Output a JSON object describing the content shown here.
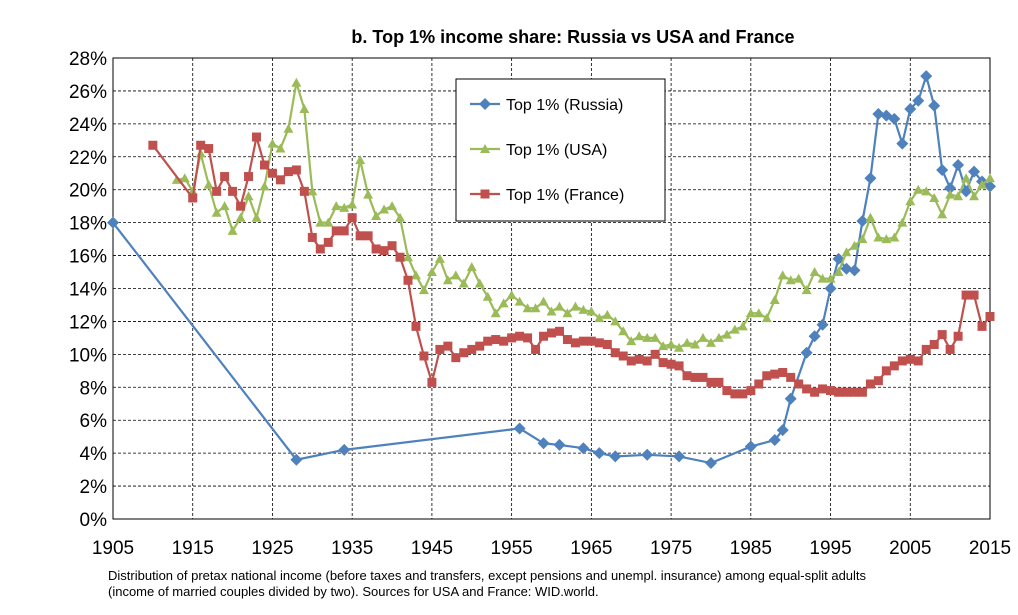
{
  "chart_data": {
    "type": "line",
    "title": "b. Top 1% income share: Russia vs USA and France",
    "note": [
      "Distribution of pretax national income (before taxes and transfers, except pensions and unempl. insurance) among equal-split adults",
      "(income of married couples divided by two). Sources for USA and France: WID.world."
    ],
    "xlim": [
      1905,
      2015
    ],
    "xticks": [
      1905,
      1915,
      1925,
      1935,
      1945,
      1955,
      1965,
      1975,
      1985,
      1995,
      2005,
      2015
    ],
    "ylim": [
      0,
      28
    ],
    "yticks": [
      {
        "value": 0,
        "label": "0%"
      },
      {
        "value": 2,
        "label": "2%"
      },
      {
        "value": 4,
        "label": "4%"
      },
      {
        "value": 6,
        "label": "6%"
      },
      {
        "value": 8,
        "label": "8%"
      },
      {
        "value": 10,
        "label": "10%"
      },
      {
        "value": 12,
        "label": "12%"
      },
      {
        "value": 14,
        "label": "14%"
      },
      {
        "value": 16,
        "label": "16%"
      },
      {
        "value": 18,
        "label": "18%"
      },
      {
        "value": 20,
        "label": "20%"
      },
      {
        "value": 22,
        "label": "22%"
      },
      {
        "value": 24,
        "label": "24%"
      },
      {
        "value": 26,
        "label": "26%"
      },
      {
        "value": 28,
        "label": "28%"
      }
    ],
    "grid": true,
    "series": [
      {
        "name": "Top 1% (Russia)",
        "color": "#4f81bd",
        "marker": "diamond",
        "x": [
          1905,
          1928,
          1934,
          1956,
          1959,
          1961,
          1964,
          1966,
          1968,
          1972,
          1976,
          1980,
          1985,
          1988,
          1989,
          1990,
          1992,
          1993,
          1994,
          1995,
          1996,
          1997,
          1998,
          1999,
          2000,
          2001,
          2002,
          2003,
          2004,
          2005,
          2006,
          2007,
          2008,
          2009,
          2010,
          2011,
          2012,
          2013,
          2014,
          2015
        ],
        "values": [
          18,
          3.6,
          4.2,
          5.5,
          4.6,
          4.5,
          4.3,
          4.0,
          3.8,
          3.9,
          3.8,
          3.4,
          4.4,
          4.8,
          5.4,
          7.3,
          10.1,
          11.1,
          11.8,
          14.0,
          15.8,
          15.2,
          15.1,
          18.1,
          20.7,
          24.6,
          24.5,
          24.3,
          22.8,
          24.9,
          25.4,
          26.9,
          25.1,
          21.2,
          20.1,
          21.5,
          19.9,
          21.1,
          20.5,
          20.2
        ]
      },
      {
        "name": "Top 1% (USA)",
        "color": "#9bbb59",
        "marker": "triangle",
        "x": [
          1913,
          1914,
          1915,
          1916,
          1917,
          1918,
          1919,
          1920,
          1921,
          1922,
          1923,
          1924,
          1925,
          1926,
          1927,
          1928,
          1929,
          1930,
          1931,
          1932,
          1933,
          1934,
          1935,
          1936,
          1937,
          1938,
          1939,
          1940,
          1941,
          1942,
          1943,
          1944,
          1945,
          1946,
          1947,
          1948,
          1949,
          1950,
          1951,
          1952,
          1953,
          1954,
          1955,
          1956,
          1957,
          1958,
          1959,
          1960,
          1961,
          1962,
          1963,
          1964,
          1965,
          1966,
          1967,
          1968,
          1969,
          1970,
          1971,
          1972,
          1973,
          1974,
          1975,
          1976,
          1977,
          1978,
          1979,
          1980,
          1981,
          1982,
          1983,
          1984,
          1985,
          1986,
          1987,
          1988,
          1989,
          1990,
          1991,
          1992,
          1993,
          1994,
          1995,
          1996,
          1997,
          1998,
          1999,
          2000,
          2001,
          2002,
          2003,
          2004,
          2005,
          2006,
          2007,
          2008,
          2009,
          2010,
          2011,
          2012,
          2013,
          2014,
          2015
        ],
        "values": [
          20.6,
          20.7,
          19.9,
          22.2,
          20.3,
          18.6,
          19.0,
          17.5,
          18.3,
          19.6,
          18.3,
          20.2,
          22.8,
          22.5,
          23.7,
          26.5,
          24.9,
          19.9,
          18.0,
          18.0,
          19.0,
          18.9,
          19.1,
          21.8,
          19.7,
          18.4,
          18.8,
          19.0,
          18.3,
          15.9,
          14.8,
          13.9,
          15.0,
          15.8,
          14.5,
          14.8,
          14.3,
          15.3,
          14.3,
          13.5,
          12.5,
          13.1,
          13.6,
          13.2,
          12.8,
          12.8,
          13.2,
          12.6,
          12.9,
          12.5,
          12.9,
          12.7,
          12.6,
          12.2,
          12.4,
          12.0,
          11.4,
          10.8,
          11.1,
          11.0,
          11.0,
          10.5,
          10.6,
          10.4,
          10.7,
          10.6,
          11.0,
          10.7,
          11.0,
          11.2,
          11.5,
          11.7,
          12.5,
          12.5,
          12.2,
          13.3,
          14.8,
          14.5,
          14.6,
          13.9,
          15.0,
          14.6,
          14.6,
          15.0,
          16.2,
          16.6,
          17.0,
          18.3,
          17.1,
          17.0,
          17.1,
          18.0,
          19.3,
          20.0,
          19.9,
          19.5,
          18.5,
          19.7,
          19.6,
          20.7,
          19.6,
          20.3,
          20.7
        ]
      },
      {
        "name": "Top 1% (France)",
        "color": "#c0504d",
        "marker": "square",
        "x": [
          1910,
          1915,
          1916,
          1917,
          1918,
          1919,
          1920,
          1921,
          1922,
          1923,
          1924,
          1925,
          1926,
          1927,
          1928,
          1929,
          1930,
          1931,
          1932,
          1933,
          1934,
          1935,
          1936,
          1937,
          1938,
          1939,
          1940,
          1941,
          1942,
          1943,
          1944,
          1945,
          1946,
          1947,
          1948,
          1949,
          1950,
          1951,
          1952,
          1953,
          1954,
          1955,
          1956,
          1957,
          1958,
          1959,
          1960,
          1961,
          1962,
          1963,
          1964,
          1965,
          1966,
          1967,
          1968,
          1969,
          1970,
          1971,
          1972,
          1973,
          1974,
          1975,
          1976,
          1977,
          1978,
          1979,
          1980,
          1981,
          1982,
          1983,
          1984,
          1985,
          1986,
          1987,
          1988,
          1989,
          1990,
          1991,
          1992,
          1993,
          1994,
          1995,
          1996,
          1997,
          1998,
          1999,
          2000,
          2001,
          2002,
          2003,
          2004,
          2005,
          2006,
          2007,
          2008,
          2009,
          2010,
          2011,
          2012,
          2013,
          2014,
          2015
        ],
        "values": [
          22.7,
          19.5,
          22.7,
          22.5,
          19.9,
          20.8,
          19.9,
          19.0,
          20.8,
          23.2,
          21.5,
          21.0,
          20.6,
          21.1,
          21.2,
          19.9,
          17.1,
          16.4,
          16.8,
          17.5,
          17.5,
          18.3,
          17.2,
          17.2,
          16.4,
          16.3,
          16.6,
          15.9,
          14.5,
          11.7,
          9.9,
          8.3,
          10.3,
          10.5,
          9.8,
          10.1,
          10.3,
          10.5,
          10.8,
          10.9,
          10.8,
          11.0,
          11.1,
          11.0,
          10.3,
          11.1,
          11.3,
          11.4,
          10.9,
          10.7,
          10.8,
          10.8,
          10.7,
          10.6,
          10.1,
          9.9,
          9.6,
          9.7,
          9.6,
          10.0,
          9.5,
          9.4,
          9.3,
          8.7,
          8.6,
          8.6,
          8.3,
          8.3,
          7.8,
          7.6,
          7.6,
          7.8,
          8.2,
          8.7,
          8.8,
          8.9,
          8.6,
          8.2,
          7.9,
          7.7,
          7.9,
          7.8,
          7.7,
          7.7,
          7.7,
          7.7,
          8.2,
          8.4,
          9.0,
          9.3,
          9.6,
          9.7,
          9.6,
          10.3,
          10.6,
          11.2,
          10.3,
          11.1,
          13.6,
          13.6,
          11.7,
          12.3
        ]
      }
    ]
  }
}
